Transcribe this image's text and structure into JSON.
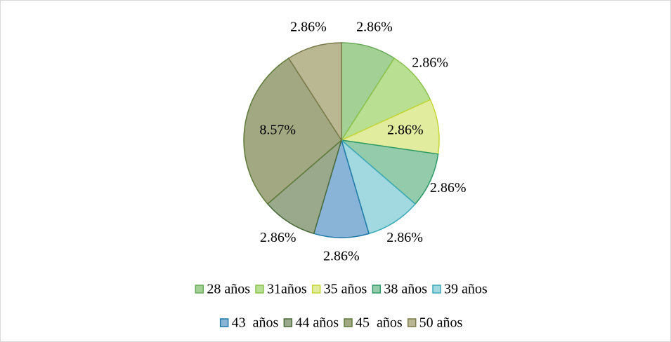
{
  "chart_data": {
    "type": "pie",
    "categories": [
      "28 años",
      "31años",
      "35 años",
      "38 años",
      "39 años",
      "43  años",
      "44 años",
      "45  años",
      "50 años"
    ],
    "values": [
      2.86,
      2.86,
      2.86,
      2.86,
      2.86,
      2.86,
      2.86,
      8.57,
      2.86
    ],
    "value_labels": [
      "2.86%",
      "2.86%",
      "2.86%",
      "2.86%",
      "2.86%",
      "2.86%",
      "2.86%",
      "8.57%",
      "2.86%"
    ],
    "colors": [
      "#a3d195",
      "#b8df92",
      "#e2ec9f",
      "#93cbab",
      "#a2d8df",
      "#8ab3d8",
      "#9aa88c",
      "#a1a882",
      "#bab893"
    ],
    "edge_colors": [
      "#6aaa5a",
      "#8cc24a",
      "#c5d636",
      "#2e9a6a",
      "#3aa9b8",
      "#1f7aa8",
      "#4a6a3a",
      "#5f7a3a",
      "#7a7a4a"
    ],
    "legend": "bottom"
  }
}
